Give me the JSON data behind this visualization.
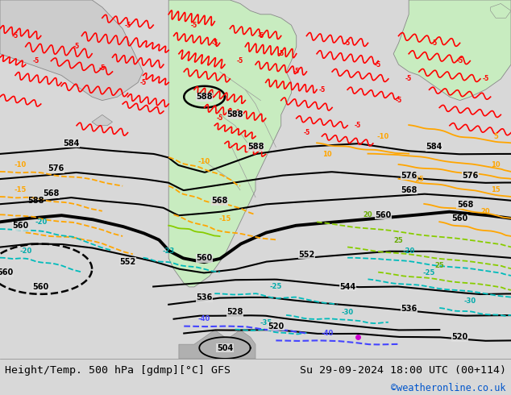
{
  "title_left": "Height/Temp. 500 hPa [gdmp][°C] GFS",
  "title_right": "Su 29-09-2024 18:00 UTC (00+114)",
  "watermark": "©weatheronline.co.uk",
  "bg_color": "#d8d8d8",
  "map_bg": "#e8e8e8",
  "ocean_color": "#e0e0e0",
  "land_green": "#c8ecc0",
  "land_gray": "#cccccc",
  "land_dark_gray": "#b0b0b0",
  "title_fontsize": 9.5,
  "watermark_color": "#0055cc",
  "text_color": "#000000",
  "bottom_bar_color": "#ffffff",
  "figsize": [
    6.34,
    4.9
  ],
  "dpi": 100,
  "black_lw": 1.5,
  "thick_lw": 2.8,
  "red_lw": 1.2,
  "orange_lw": 1.3,
  "cyan_lw": 1.3,
  "green_lw": 1.3,
  "blue_lw": 1.5
}
